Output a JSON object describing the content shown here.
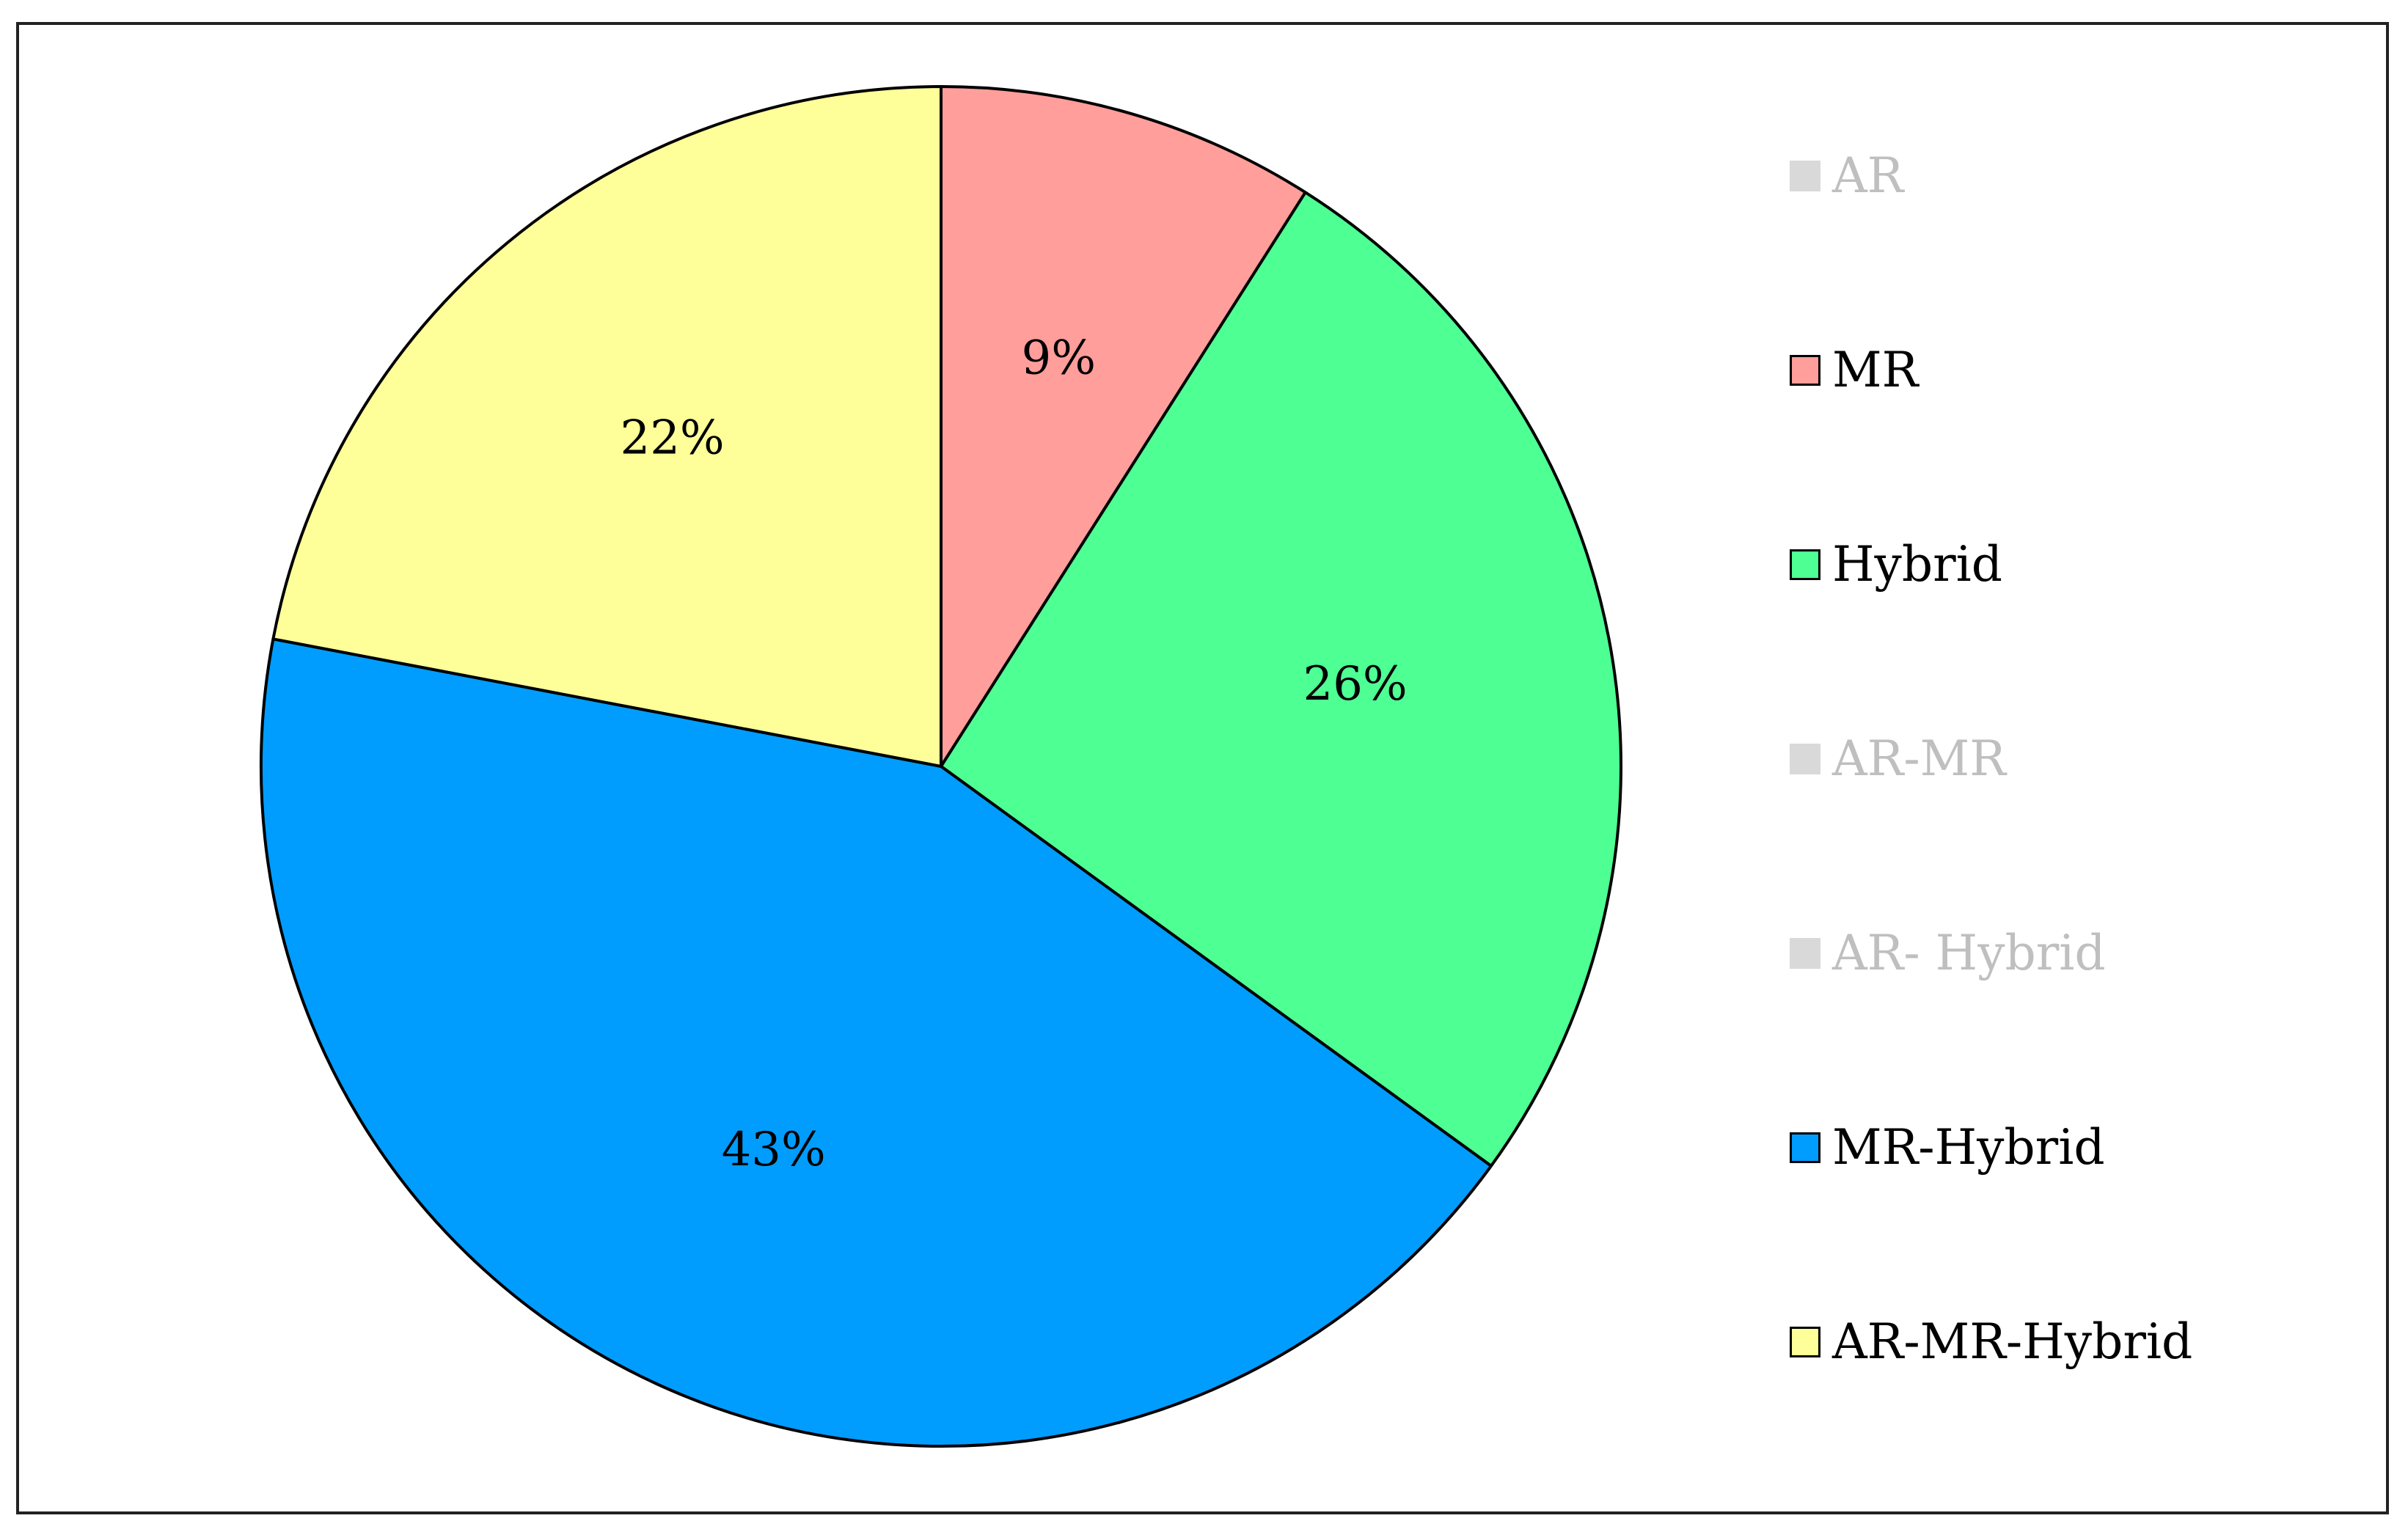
{
  "chart_data": {
    "type": "pie",
    "title": "",
    "legend_position": "right",
    "slices": [
      {
        "name": "MR",
        "value": 9,
        "label": "9%",
        "color": "#ff9e9b"
      },
      {
        "name": "Hybrid",
        "value": 26,
        "label": "26%",
        "color": "#4eff94"
      },
      {
        "name": "MR-Hybrid",
        "value": 43,
        "label": "43%",
        "color": "#009dff"
      },
      {
        "name": "AR-MR-Hybrid",
        "value": 22,
        "label": "22%",
        "color": "#ffff99"
      }
    ],
    "legend": [
      {
        "label": "AR",
        "color": "#d9d9d9",
        "active": false
      },
      {
        "label": "MR",
        "color": "#ff9e9b",
        "active": true
      },
      {
        "label": "Hybrid",
        "color": "#4eff94",
        "active": true
      },
      {
        "label": "AR-MR",
        "color": "#d9d9d9",
        "active": false
      },
      {
        "label": "AR- Hybrid",
        "color": "#d9d9d9",
        "active": false
      },
      {
        "label": "MR-Hybrid",
        "color": "#009dff",
        "active": true
      },
      {
        "label": "AR-MR-Hybrid",
        "color": "#ffff99",
        "active": true
      }
    ]
  }
}
